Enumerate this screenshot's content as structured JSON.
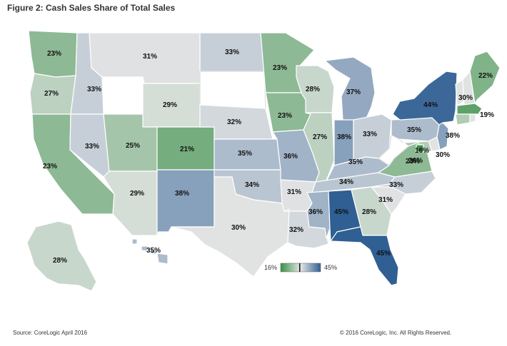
{
  "title": "Figure 2: Cash Sales Share of Total Sales",
  "source": "Source: CoreLogic April 2016",
  "copyright": "© 2016 CoreLogic, Inc. All Rights Reserved.",
  "colors": {
    "low": "#3a8f47",
    "mid": "#e6e6e6",
    "high": "#2f5f93",
    "no_data": "#ffffff"
  },
  "legend": {
    "min_label": "16%",
    "max_label": "45%",
    "min": 16,
    "max": 45
  },
  "states": [
    {
      "code": "WA",
      "value": 23,
      "label": "23%"
    },
    {
      "code": "OR",
      "value": 27,
      "label": "27%"
    },
    {
      "code": "CA",
      "value": 23,
      "label": "23%"
    },
    {
      "code": "ID",
      "value": 33,
      "label": "33%"
    },
    {
      "code": "NV",
      "value": 33,
      "label": "33%"
    },
    {
      "code": "MT",
      "value": 31,
      "label": "31%"
    },
    {
      "code": "WY",
      "value": 29,
      "label": "29%"
    },
    {
      "code": "UT",
      "value": 25,
      "label": "25%"
    },
    {
      "code": "AZ",
      "value": 29,
      "label": "29%"
    },
    {
      "code": "CO",
      "value": 21,
      "label": "21%"
    },
    {
      "code": "NM",
      "value": 38,
      "label": "38%"
    },
    {
      "code": "ND",
      "value": 33,
      "label": "33%"
    },
    {
      "code": "SD",
      "value": null,
      "label": ""
    },
    {
      "code": "NE",
      "value": 32,
      "label": "32%"
    },
    {
      "code": "KS",
      "value": 35,
      "label": "35%"
    },
    {
      "code": "OK",
      "value": 34,
      "label": "34%"
    },
    {
      "code": "TX",
      "value": 30,
      "label": "30%"
    },
    {
      "code": "MN",
      "value": 23,
      "label": "23%"
    },
    {
      "code": "IA",
      "value": 23,
      "label": "23%"
    },
    {
      "code": "MO",
      "value": 36,
      "label": "36%"
    },
    {
      "code": "AR",
      "value": 31,
      "label": "31%"
    },
    {
      "code": "LA",
      "value": 32,
      "label": "32%"
    },
    {
      "code": "WI",
      "value": 28,
      "label": "28%"
    },
    {
      "code": "IL",
      "value": 27,
      "label": "27%"
    },
    {
      "code": "MI",
      "value": 37,
      "label": "37%"
    },
    {
      "code": "IN",
      "value": 38,
      "label": "38%"
    },
    {
      "code": "OH",
      "value": 33,
      "label": "33%"
    },
    {
      "code": "KY",
      "value": 35,
      "label": "35%"
    },
    {
      "code": "TN",
      "value": 34,
      "label": "34%"
    },
    {
      "code": "MS",
      "value": 36,
      "label": "36%"
    },
    {
      "code": "AL",
      "value": 45,
      "label": "45%"
    },
    {
      "code": "GA",
      "value": 28,
      "label": "28%"
    },
    {
      "code": "FL",
      "value": 45,
      "label": "45%"
    },
    {
      "code": "SC",
      "value": 31,
      "label": "31%"
    },
    {
      "code": "NC",
      "value": 33,
      "label": "33%"
    },
    {
      "code": "VA",
      "value": 23,
      "label": "23%"
    },
    {
      "code": "WV",
      "value": null,
      "label": ""
    },
    {
      "code": "PA",
      "value": 35,
      "label": "35%"
    },
    {
      "code": "NY",
      "value": 44,
      "label": "44%"
    },
    {
      "code": "NJ",
      "value": 38,
      "label": "38%"
    },
    {
      "code": "DE",
      "value": 30,
      "label": "30%"
    },
    {
      "code": "MD",
      "value": 26,
      "label": "26%"
    },
    {
      "code": "DC",
      "value": 16,
      "label": "16%"
    },
    {
      "code": "VT",
      "value": 30,
      "label": "30%"
    },
    {
      "code": "NH",
      "value": 30,
      "label": ""
    },
    {
      "code": "ME",
      "value": 22,
      "label": "22%"
    },
    {
      "code": "MA",
      "value": 19,
      "label": "19%"
    },
    {
      "code": "CT",
      "value": 26,
      "label": ""
    },
    {
      "code": "RI",
      "value": 30,
      "label": ""
    },
    {
      "code": "AK",
      "value": 28,
      "label": "28%"
    },
    {
      "code": "HI",
      "value": 35,
      "label": "35%"
    }
  ]
}
